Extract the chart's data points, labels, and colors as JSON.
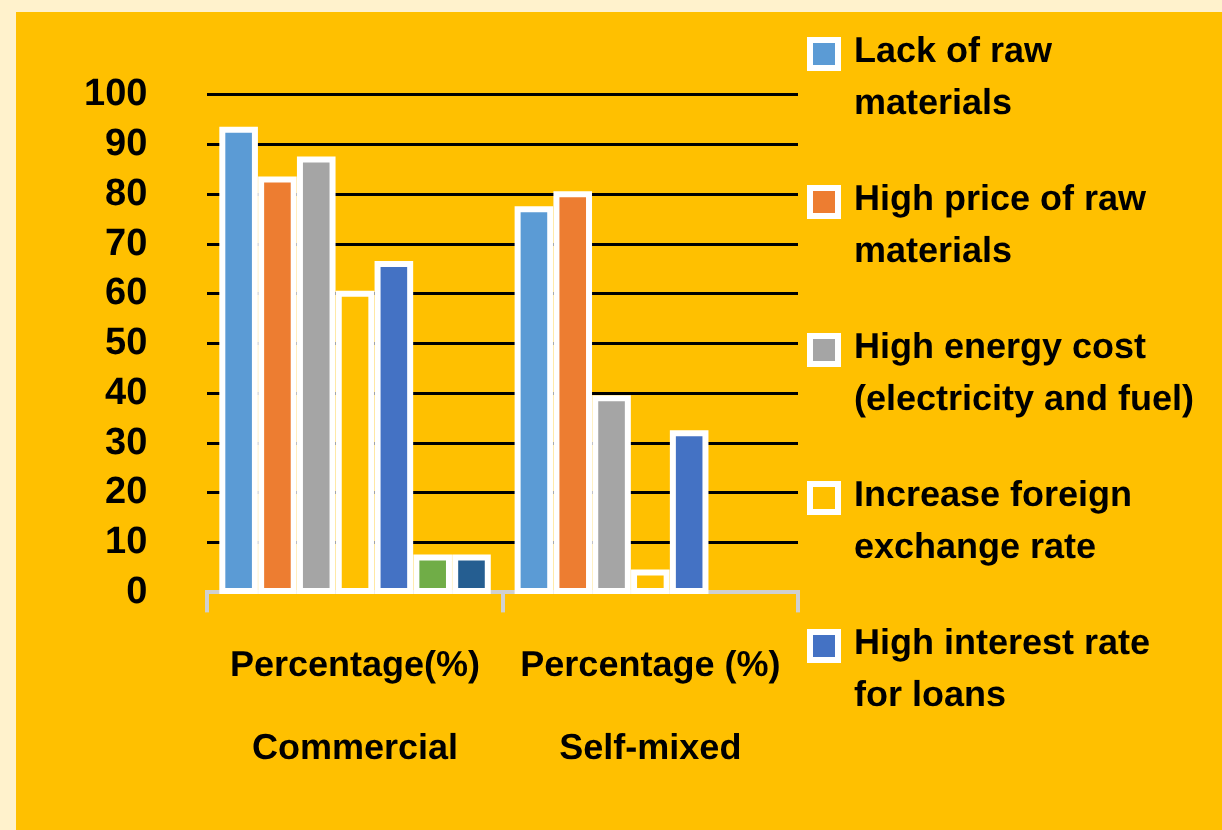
{
  "chart_data": {
    "type": "bar",
    "categories": [
      "Percentage(%)\nCommercial",
      "Percentage (%)\nSelf-mixed"
    ],
    "series": [
      {
        "name": "Lack of raw materials",
        "color": "#5b9bd5",
        "values": [
          93,
          77
        ]
      },
      {
        "name": "High price of raw materials",
        "color": "#ed7d31",
        "values": [
          83,
          80
        ]
      },
      {
        "name": "High energy cost (electricity and fuel)",
        "color": "#a5a5a5",
        "values": [
          87,
          39
        ]
      },
      {
        "name": "Increase foreign exchange rate",
        "color": "#ffc000",
        "values": [
          60,
          4
        ]
      },
      {
        "name": "High interest rate for loans",
        "color": "#4472c4",
        "values": [
          66,
          32
        ]
      },
      {
        "color": "#70ad47",
        "values": [
          7,
          null
        ]
      },
      {
        "color": "#255e91",
        "values": [
          7,
          null
        ]
      }
    ],
    "ylim": [
      0,
      100
    ],
    "yticks": [
      0,
      10,
      20,
      30,
      40,
      50,
      60,
      70,
      80,
      90,
      100
    ],
    "grid": "y",
    "legend": "right"
  }
}
